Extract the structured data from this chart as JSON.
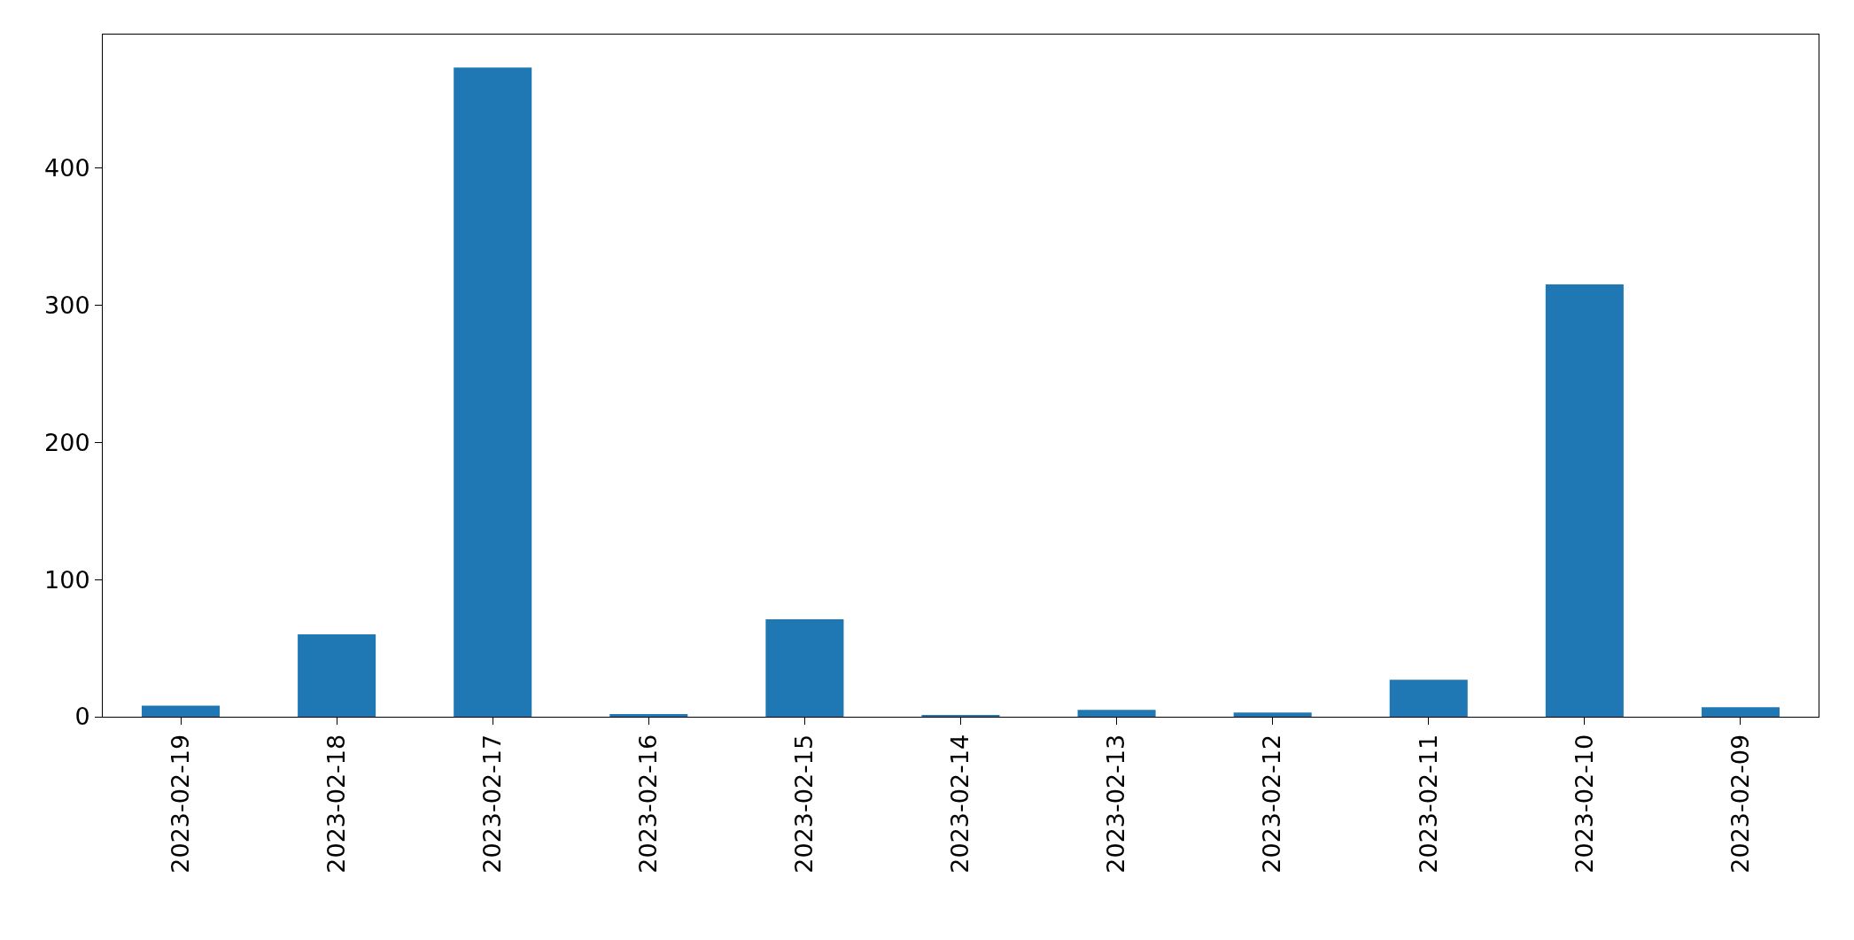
{
  "chart_data": {
    "type": "bar",
    "categories": [
      "2023-02-19",
      "2023-02-18",
      "2023-02-17",
      "2023-02-16",
      "2023-02-15",
      "2023-02-14",
      "2023-02-13",
      "2023-02-12",
      "2023-02-11",
      "2023-02-10",
      "2023-02-09"
    ],
    "values": [
      8,
      60,
      473,
      2,
      71,
      1,
      5,
      3,
      27,
      315,
      7
    ],
    "color": "#1f77b4",
    "ylim": [
      0,
      497
    ],
    "yticks": [
      0,
      100,
      200,
      300,
      400
    ],
    "grid": false,
    "legend": false
  }
}
